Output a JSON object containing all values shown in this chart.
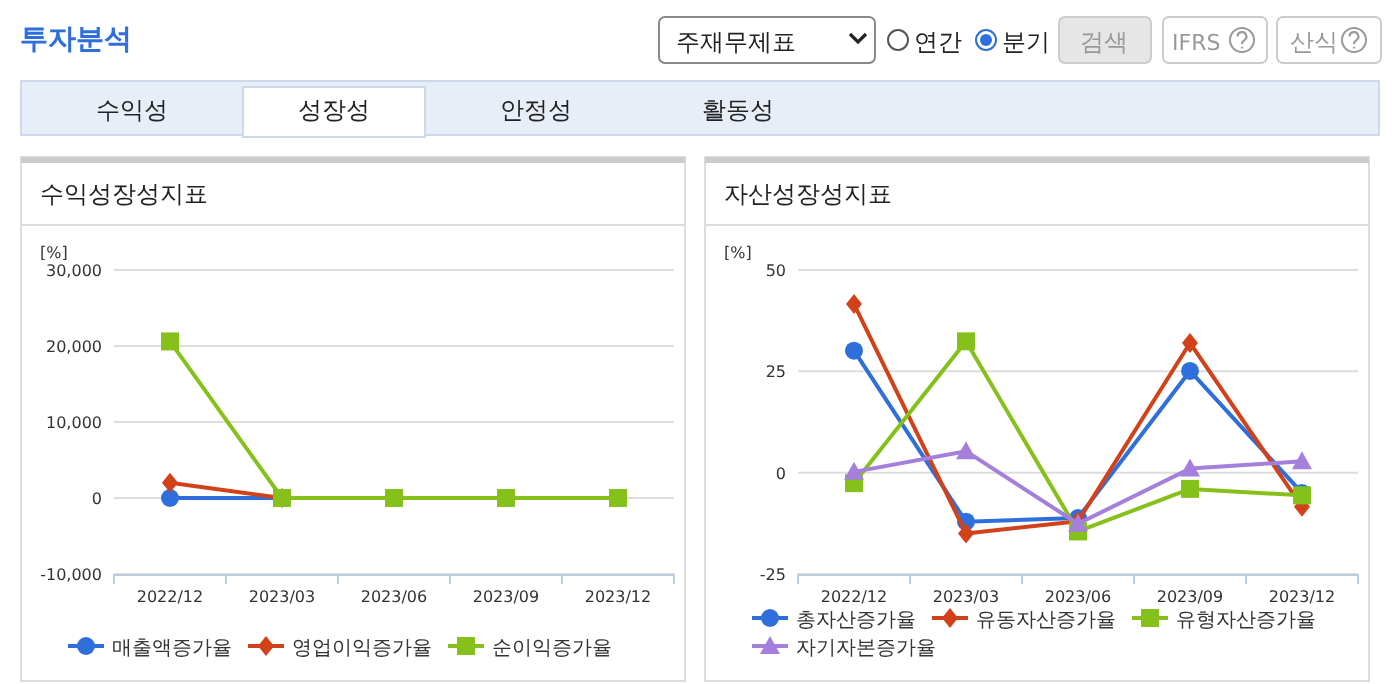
{
  "chart_data": [
    {
      "type": "other",
      "annotations": [
        "투자분석",
        "주재무제표",
        "연간",
        "분기",
        "검색",
        "IFRS",
        "산식",
        "수익성",
        "성장성",
        "안정성",
        "활동성"
      ]
    },
    {
      "type": "line",
      "title": "수익성장성지표",
      "ylabel": "[%]",
      "categories": [
        "2022/12",
        "2023/03",
        "2023/06",
        "2023/09",
        "2023/12"
      ],
      "ylim": [
        -10000,
        30000
      ],
      "yticks": [
        {
          "value": -10000,
          "label": "-10,000"
        },
        0,
        {
          "value": 10000,
          "label": "10,000"
        },
        {
          "value": 20000,
          "label": "20,000"
        },
        {
          "value": 30000,
          "label": "30,000"
        }
      ],
      "grid": "y",
      "legend": "bottom",
      "line_style": "solid",
      "series": [
        {
          "name": "매출액증가율",
          "color": "#2f6fdc",
          "marker": "circle",
          "values": [
            0,
            0,
            null,
            null,
            null
          ]
        },
        {
          "name": "영업이익증가율",
          "color": "#d2421a",
          "marker": "diamond",
          "values": [
            2000,
            0,
            null,
            null,
            null
          ]
        },
        {
          "name": "순이익증가율",
          "color": "#86c11b",
          "marker": "square",
          "values": [
            20600,
            0,
            0,
            0,
            0
          ]
        }
      ]
    },
    {
      "type": "line",
      "title": "자산성장성지표",
      "ylabel": "[%]",
      "categories": [
        "2022/12",
        "2023/03",
        "2023/06",
        "2023/09",
        "2023/12"
      ],
      "ylim": [
        -25,
        50
      ],
      "yticks": [
        -25,
        0,
        25,
        50
      ],
      "grid": "y",
      "legend": "bottom",
      "line_style": "solid",
      "series": [
        {
          "name": "총자산증가율",
          "color": "#2f6fdc",
          "marker": "circle",
          "values": [
            30.1,
            -12.1,
            -11.2,
            25.1,
            -5
          ]
        },
        {
          "name": "유동자산증가율",
          "color": "#d2421a",
          "marker": "diamond",
          "values": [
            41.6,
            -15,
            -12,
            32,
            -8.4
          ]
        },
        {
          "name": "유형자산증가율",
          "color": "#86c11b",
          "marker": "square",
          "values": [
            -2.6,
            32.4,
            -14.5,
            -4,
            -5.6
          ]
        },
        {
          "name": "자기자본증가율",
          "color": "#a57fdc",
          "marker": "triangle",
          "values": [
            0.2,
            5.3,
            -12.6,
            1,
            2.8
          ]
        }
      ]
    }
  ]
}
